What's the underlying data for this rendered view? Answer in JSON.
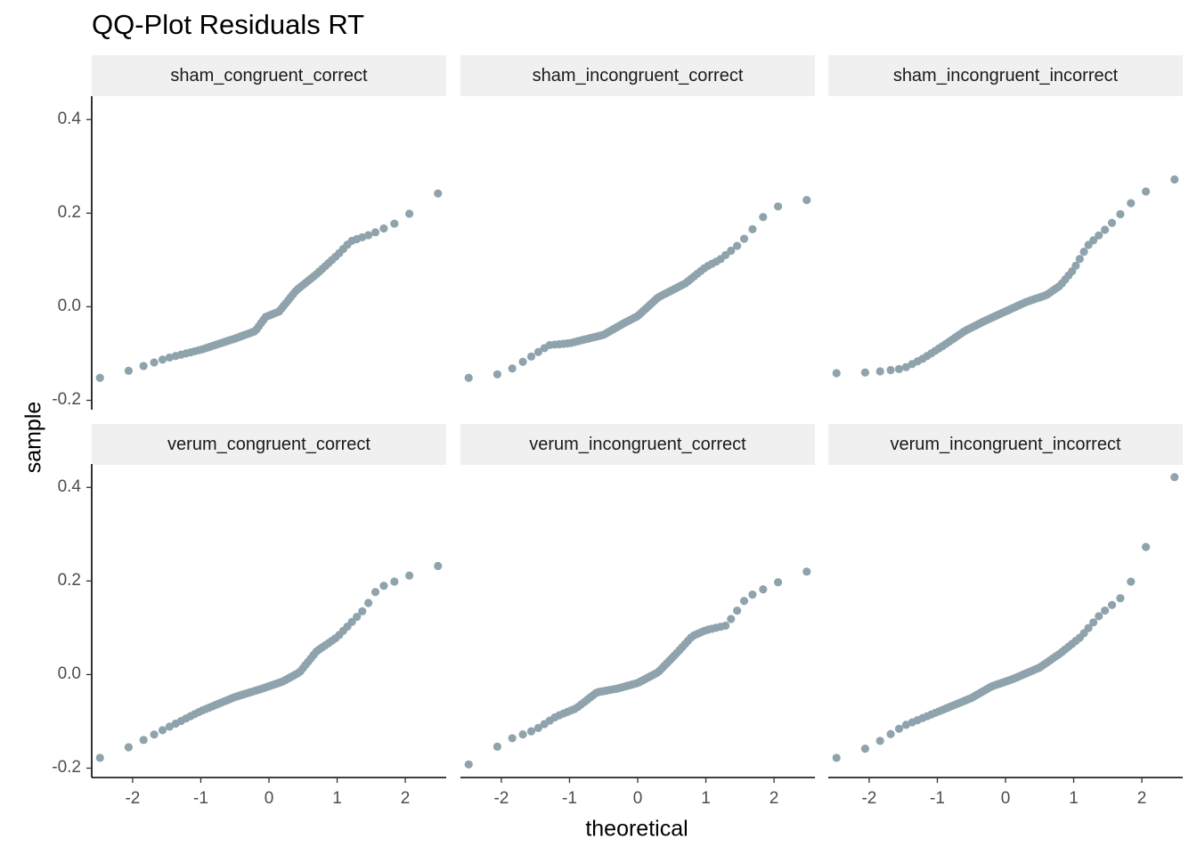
{
  "chart_data": {
    "type": "scatter",
    "title": "QQ-Plot Residuals RT",
    "xlabel": "theoretical",
    "ylabel": "sample",
    "xlim": [
      -2.6,
      2.6
    ],
    "ylim": [
      -0.22,
      0.45
    ],
    "x_ticks": [
      -2,
      -1,
      0,
      1,
      2
    ],
    "x_tick_labels": [
      "-2",
      "-1",
      "0",
      "1",
      "2"
    ],
    "y_ticks": [
      -0.2,
      0.0,
      0.2,
      0.4
    ],
    "y_tick_labels": [
      "-0.2",
      "0.0",
      "0.2",
      "0.4"
    ],
    "grid": false,
    "point_color": "#8fa3ad",
    "n_points_per_panel": 76,
    "panels": [
      {
        "name": "sham_congruent_correct",
        "anchors": [
          [
            -2.4,
            -0.152
          ],
          [
            -1.95,
            -0.132
          ],
          [
            -1.5,
            -0.11
          ],
          [
            -1.0,
            -0.092
          ],
          [
            -0.5,
            -0.068
          ],
          [
            -0.2,
            -0.052
          ],
          [
            -0.05,
            -0.022
          ],
          [
            0.15,
            -0.01
          ],
          [
            0.4,
            0.035
          ],
          [
            0.7,
            0.07
          ],
          [
            1.0,
            0.11
          ],
          [
            1.2,
            0.14
          ],
          [
            1.5,
            0.155
          ],
          [
            1.95,
            0.185
          ],
          [
            2.4,
            0.242
          ]
        ]
      },
      {
        "name": "sham_incongruent_correct",
        "anchors": [
          [
            -2.4,
            -0.152
          ],
          [
            -1.95,
            -0.142
          ],
          [
            -1.6,
            -0.11
          ],
          [
            -1.3,
            -0.082
          ],
          [
            -1.0,
            -0.078
          ],
          [
            -0.5,
            -0.06
          ],
          [
            -0.2,
            -0.035
          ],
          [
            0.0,
            -0.02
          ],
          [
            0.3,
            0.02
          ],
          [
            0.7,
            0.05
          ],
          [
            1.0,
            0.085
          ],
          [
            1.2,
            0.1
          ],
          [
            1.5,
            0.135
          ],
          [
            1.95,
            0.21
          ],
          [
            2.4,
            0.228
          ]
        ]
      },
      {
        "name": "sham_incongruent_incorrect",
        "anchors": [
          [
            -2.4,
            -0.142
          ],
          [
            -1.95,
            -0.14
          ],
          [
            -1.5,
            -0.132
          ],
          [
            -1.2,
            -0.11
          ],
          [
            -0.9,
            -0.082
          ],
          [
            -0.6,
            -0.052
          ],
          [
            -0.3,
            -0.03
          ],
          [
            0.0,
            -0.01
          ],
          [
            0.3,
            0.01
          ],
          [
            0.6,
            0.025
          ],
          [
            0.8,
            0.045
          ],
          [
            1.0,
            0.08
          ],
          [
            1.2,
            0.13
          ],
          [
            1.5,
            0.17
          ],
          [
            1.95,
            0.238
          ],
          [
            2.4,
            0.272
          ]
        ]
      },
      {
        "name": "verum_congruent_correct",
        "anchors": [
          [
            -2.4,
            -0.178
          ],
          [
            -1.95,
            -0.148
          ],
          [
            -1.55,
            -0.118
          ],
          [
            -1.0,
            -0.078
          ],
          [
            -0.5,
            -0.048
          ],
          [
            -0.1,
            -0.03
          ],
          [
            0.2,
            -0.015
          ],
          [
            0.45,
            0.005
          ],
          [
            0.7,
            0.05
          ],
          [
            1.0,
            0.08
          ],
          [
            1.2,
            0.11
          ],
          [
            1.4,
            0.14
          ],
          [
            1.6,
            0.185
          ],
          [
            1.95,
            0.205
          ],
          [
            2.4,
            0.232
          ]
        ]
      },
      {
        "name": "verum_incongruent_correct",
        "anchors": [
          [
            -2.4,
            -0.192
          ],
          [
            -1.95,
            -0.142
          ],
          [
            -1.5,
            -0.118
          ],
          [
            -1.2,
            -0.09
          ],
          [
            -0.9,
            -0.072
          ],
          [
            -0.6,
            -0.038
          ],
          [
            -0.3,
            -0.03
          ],
          [
            0.0,
            -0.018
          ],
          [
            0.3,
            0.005
          ],
          [
            0.6,
            0.05
          ],
          [
            0.8,
            0.082
          ],
          [
            1.0,
            0.095
          ],
          [
            1.3,
            0.105
          ],
          [
            1.6,
            0.165
          ],
          [
            1.95,
            0.19
          ],
          [
            2.4,
            0.22
          ]
        ]
      },
      {
        "name": "verum_incongruent_incorrect",
        "anchors": [
          [
            -2.4,
            -0.178
          ],
          [
            -1.95,
            -0.152
          ],
          [
            -1.5,
            -0.11
          ],
          [
            -1.0,
            -0.08
          ],
          [
            -0.5,
            -0.05
          ],
          [
            -0.2,
            -0.025
          ],
          [
            0.1,
            -0.01
          ],
          [
            0.5,
            0.015
          ],
          [
            0.8,
            0.045
          ],
          [
            1.1,
            0.08
          ],
          [
            1.4,
            0.13
          ],
          [
            1.7,
            0.165
          ],
          [
            1.95,
            0.225
          ],
          [
            2.4,
            0.422
          ]
        ]
      }
    ]
  }
}
